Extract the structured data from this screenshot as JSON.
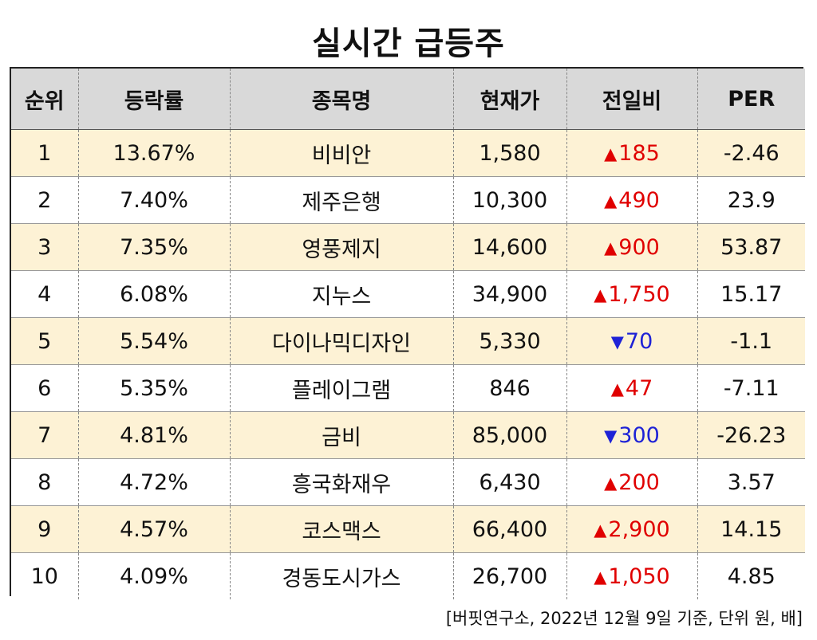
{
  "title": "실시간 급등주",
  "headers": [
    "순위",
    "등락률",
    "종목명",
    "현재가",
    "전일비",
    "PER"
  ],
  "rows": [
    {
      "rank": "1",
      "rate": "13.67%",
      "name": "비비안",
      "price": "1,580",
      "direction": "up",
      "arrow": "▲",
      "change": "185",
      "per": "-2.46"
    },
    {
      "rank": "2",
      "rate": "7.40%",
      "name": "제주은행",
      "price": "10,300",
      "direction": "up",
      "arrow": "▲",
      "change": "490",
      "per": "23.9"
    },
    {
      "rank": "3",
      "rate": "7.35%",
      "name": "영풍제지",
      "price": "14,600",
      "direction": "up",
      "arrow": "▲",
      "change": "900",
      "per": "53.87"
    },
    {
      "rank": "4",
      "rate": "6.08%",
      "name": "지누스",
      "price": "34,900",
      "direction": "up",
      "arrow": "▲",
      "change": "1,750",
      "per": "15.17"
    },
    {
      "rank": "5",
      "rate": "5.54%",
      "name": "다이나믹디자인",
      "price": "5,330",
      "direction": "down",
      "arrow": "▼",
      "change": "70",
      "per": "-1.1"
    },
    {
      "rank": "6",
      "rate": "5.35%",
      "name": "플레이그램",
      "price": "846",
      "direction": "up",
      "arrow": "▲",
      "change": "47",
      "per": "-7.11"
    },
    {
      "rank": "7",
      "rate": "4.81%",
      "name": "금비",
      "price": "85,000",
      "direction": "down",
      "arrow": "▼",
      "change": "300",
      "per": "-26.23"
    },
    {
      "rank": "8",
      "rate": "4.72%",
      "name": "흥국화재우",
      "price": "6,430",
      "direction": "up",
      "arrow": "▲",
      "change": "200",
      "per": "3.57"
    },
    {
      "rank": "9",
      "rate": "4.57%",
      "name": "코스맥스",
      "price": "66,400",
      "direction": "up",
      "arrow": "▲",
      "change": "2,900",
      "per": "14.15"
    },
    {
      "rank": "10",
      "rate": "4.09%",
      "name": "경동도시가스",
      "price": "26,700",
      "direction": "up",
      "arrow": "▲",
      "change": "1,050",
      "per": "4.85"
    }
  ],
  "footer": "[버핏연구소, 2022년 12월 9일 기준, 단위 원, 배]",
  "colors": {
    "up": "#e00000",
    "down": "#1e22d6",
    "header_bg": "#d9d9d9",
    "stripe_bg": "#fdf2d5"
  }
}
